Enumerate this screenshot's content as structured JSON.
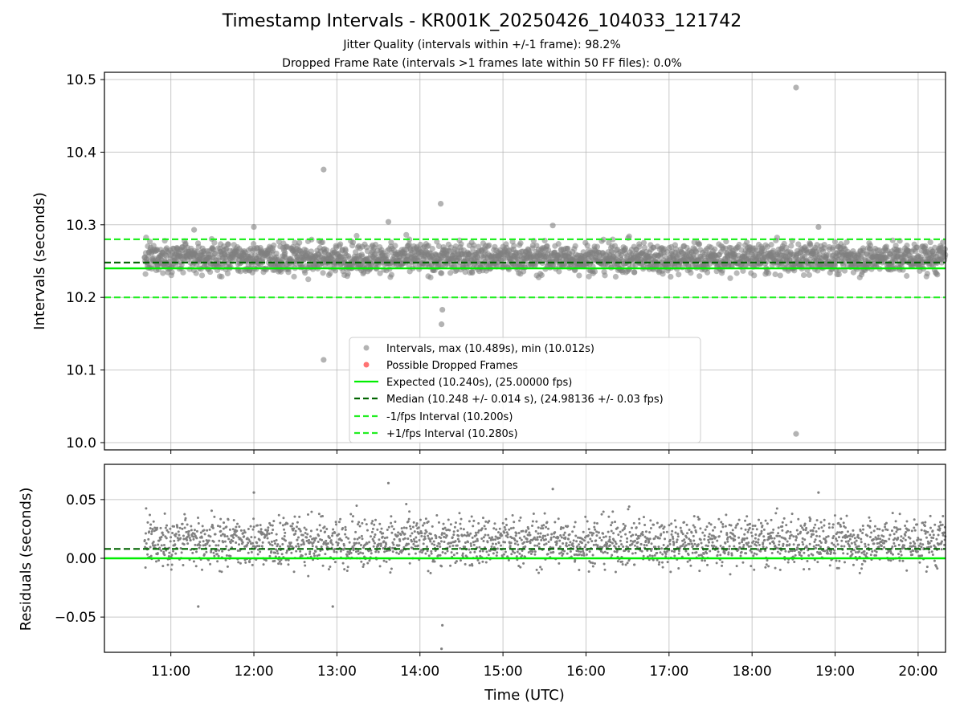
{
  "title": "Timestamp Intervals - KR001K_20250426_104033_121742",
  "subtitle_jitter": "Jitter Quality (intervals within +/-1 frame): 98.2%",
  "subtitle_dropped": "Dropped Frame Rate (intervals >1 frames late within 50 FF files): 0.0%",
  "colors": {
    "points": "#808080",
    "dropped": "#ff0000",
    "expected": "#00ee00",
    "median": "#006400",
    "bounds": "#22ee22"
  },
  "chart_data": [
    {
      "type": "scatter",
      "panel": "intervals",
      "xlabel": "",
      "ylabel": "Intervals (seconds)",
      "x_unit": "hours UTC",
      "xlim": [
        10.2,
        20.33
      ],
      "ylim": [
        9.99,
        10.51
      ],
      "x_ticks": [
        {
          "value": 11,
          "label": "11:00"
        },
        {
          "value": 12,
          "label": "12:00"
        },
        {
          "value": 13,
          "label": "13:00"
        },
        {
          "value": 14,
          "label": "14:00"
        },
        {
          "value": 15,
          "label": "15:00"
        },
        {
          "value": 16,
          "label": "16:00"
        },
        {
          "value": 17,
          "label": "17:00"
        },
        {
          "value": 18,
          "label": "18:00"
        },
        {
          "value": 19,
          "label": "19:00"
        },
        {
          "value": 20,
          "label": "20:00"
        }
      ],
      "y_ticks": [
        {
          "value": 10.0,
          "label": "10.0"
        },
        {
          "value": 10.1,
          "label": "10.1"
        },
        {
          "value": 10.2,
          "label": "10.2"
        },
        {
          "value": 10.3,
          "label": "10.3"
        },
        {
          "value": 10.4,
          "label": "10.4"
        },
        {
          "value": 10.5,
          "label": "10.5"
        }
      ],
      "grid": true,
      "legend_position": "lower-center",
      "time_range": [
        10.68,
        20.33
      ],
      "interval_band": {
        "center": 10.254,
        "half_width": 0.025
      },
      "outliers": [
        {
          "x": 12.84,
          "y": 10.376
        },
        {
          "x": 12.84,
          "y": 10.114
        },
        {
          "x": 14.25,
          "y": 10.329
        },
        {
          "x": 14.27,
          "y": 10.183
        },
        {
          "x": 14.26,
          "y": 10.163
        },
        {
          "x": 18.53,
          "y": 10.489
        },
        {
          "x": 18.53,
          "y": 10.012
        },
        {
          "x": 13.62,
          "y": 10.304
        },
        {
          "x": 12.0,
          "y": 10.297
        },
        {
          "x": 18.8,
          "y": 10.297
        },
        {
          "x": 15.6,
          "y": 10.299
        },
        {
          "x": 11.28,
          "y": 10.293
        }
      ],
      "series": [
        {
          "name": "Intervals, max (10.489s), min (10.012s)",
          "kind": "scatter"
        },
        {
          "name": "Possible Dropped Frames",
          "kind": "scatter",
          "values": []
        },
        {
          "name": "Expected (10.240s), (25.00000 fps)",
          "kind": "hline",
          "y": 10.24
        },
        {
          "name": "Median (10.248 +/- 0.014 s), (24.98136 +/- 0.03 fps)",
          "kind": "hline",
          "y": 10.248
        },
        {
          "name": "-1/fps Interval (10.200s)",
          "kind": "hline",
          "y": 10.2
        },
        {
          "name": "+1/fps Interval (10.280s)",
          "kind": "hline",
          "y": 10.28
        }
      ]
    },
    {
      "type": "scatter",
      "panel": "residuals",
      "xlabel": "Time (UTC)",
      "ylabel": "Residuals (seconds)",
      "xlim": [
        10.2,
        20.33
      ],
      "ylim": [
        -0.08,
        0.08
      ],
      "y_ticks": [
        {
          "value": 0.05,
          "label": "0.05"
        },
        {
          "value": 0.0,
          "label": "0.00"
        },
        {
          "value": -0.05,
          "label": "−0.05"
        }
      ],
      "grid": true,
      "expected_line": 0.0,
      "median_line": 0.008,
      "outliers": [
        {
          "x": 13.62,
          "y": 0.064
        },
        {
          "x": 15.6,
          "y": 0.059
        },
        {
          "x": 12.0,
          "y": 0.056
        },
        {
          "x": 18.8,
          "y": 0.056
        },
        {
          "x": 14.27,
          "y": -0.057
        },
        {
          "x": 14.26,
          "y": -0.077
        },
        {
          "x": 11.33,
          "y": -0.041
        },
        {
          "x": 12.95,
          "y": -0.041
        }
      ]
    }
  ]
}
